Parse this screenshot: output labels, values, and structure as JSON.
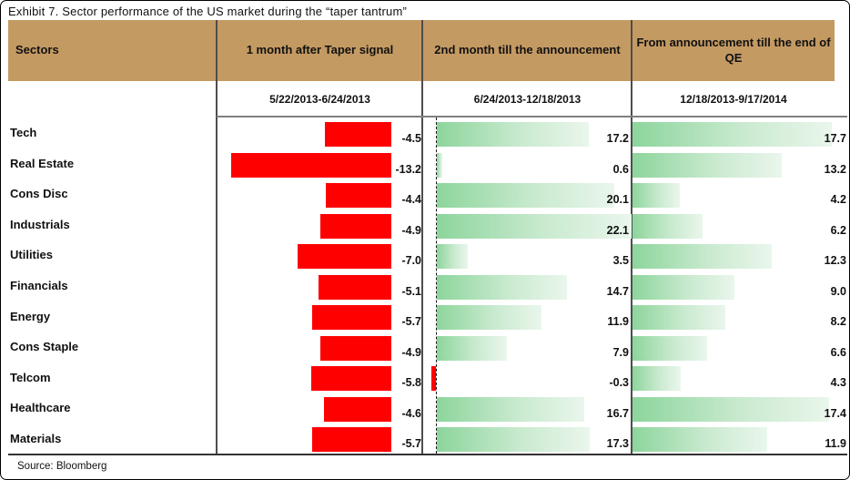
{
  "title": "Exhibit 7. Sector performance of the US market during the “taper tantrum”",
  "source": "Source: Bloomberg",
  "table": {
    "sector_header": "Sectors",
    "columns": [
      {
        "header": "1 month after Taper signal",
        "period": "5/22/2013-6/24/2013"
      },
      {
        "header": "2nd month till the announcement",
        "period": "6/24/2013-12/18/2013"
      },
      {
        "header": "From announcement till the end of QE",
        "period": "12/18/2013-9/17/2014"
      }
    ]
  },
  "chart_data": {
    "type": "bar",
    "orientation": "horizontal",
    "title": "Sector performance of the US market during the taper tantrum (%)",
    "categories": [
      "Tech",
      "Real Estate",
      "Cons Disc",
      "Industrials",
      "Utilities",
      "Financials",
      "Energy",
      "Cons Staple",
      "Telcom",
      "Healthcare",
      "Materials"
    ],
    "series": [
      {
        "name": "1 month after Taper signal (5/22/2013-6/24/2013)",
        "values": [
          -4.5,
          -13.2,
          -4.4,
          -4.9,
          -7.0,
          -5.1,
          -5.7,
          -4.9,
          -5.8,
          -4.6,
          -5.7
        ],
        "xlim": [
          -14.7,
          1.7
        ],
        "bar_color": "#FF0000",
        "zero_anchor": "right"
      },
      {
        "name": "2nd month till the announcement (6/24/2013-12/18/2013)",
        "values": [
          17.2,
          0.6,
          20.1,
          22.1,
          3.5,
          14.7,
          11.9,
          7.9,
          -0.3,
          16.7,
          17.3
        ],
        "xlim": [
          -1.5,
          22.3
        ],
        "bar_color": "green-gradient",
        "negative_color": "#FF0000",
        "zero_anchor": "dashed-line"
      },
      {
        "name": "From announcement till the end of QE (12/18/2013-9/17/2014)",
        "values": [
          17.7,
          13.2,
          4.2,
          6.2,
          12.3,
          9.0,
          8.2,
          6.6,
          4.3,
          17.4,
          11.9
        ],
        "xlim": [
          0,
          19.1
        ],
        "bar_color": "green-gradient",
        "zero_anchor": "left"
      }
    ],
    "value_label_format": "one-decimal",
    "grid": false,
    "legend": false,
    "colors": {
      "negative_bar": "#FF0000",
      "positive_gradient_start": "#8DD59C",
      "positive_gradient_end": "#EAF6EC",
      "header_bg": "#C49A63"
    }
  }
}
